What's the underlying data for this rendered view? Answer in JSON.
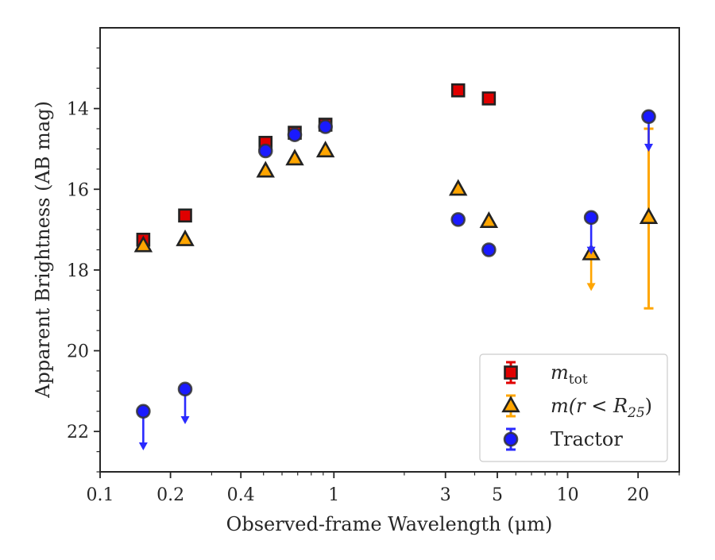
{
  "chart_data": {
    "type": "scatter",
    "xlabel": "Observed-frame Wavelength (μm)",
    "ylabel": "Apparent Brightness (AB mag)",
    "xscale": "log",
    "xlim": [
      0.1,
      30
    ],
    "ylim": [
      23.0,
      12.0
    ],
    "y_inverted": true,
    "xticks": [
      {
        "value": 0.1,
        "label": "0.1"
      },
      {
        "value": 0.2,
        "label": "0.2"
      },
      {
        "value": 0.4,
        "label": "0.4"
      },
      {
        "value": 1,
        "label": "1"
      },
      {
        "value": 3,
        "label": "3"
      },
      {
        "value": 5,
        "label": "5"
      },
      {
        "value": 10,
        "label": "10"
      },
      {
        "value": 20,
        "label": "20"
      }
    ],
    "yticks": [
      {
        "value": 14,
        "label": "14"
      },
      {
        "value": 16,
        "label": "16"
      },
      {
        "value": 18,
        "label": "18"
      },
      {
        "value": 20,
        "label": "20"
      },
      {
        "value": 22,
        "label": "22"
      }
    ],
    "grid": false,
    "legend_position": "lower-right",
    "series": [
      {
        "name": "m_tot",
        "legend_base": "m",
        "legend_sub": "tot",
        "legend_sup": "",
        "marker": "square",
        "color": "#e00000",
        "edge_color": "#222222",
        "error_color": "#e00000",
        "points": [
          {
            "x": 0.153,
            "y": 17.25
          },
          {
            "x": 0.231,
            "y": 16.65
          },
          {
            "x": 0.51,
            "y": 14.85
          },
          {
            "x": 0.68,
            "y": 14.6
          },
          {
            "x": 0.92,
            "y": 14.4
          },
          {
            "x": 3.4,
            "y": 13.55
          },
          {
            "x": 4.6,
            "y": 13.75
          }
        ]
      },
      {
        "name": "m(r < R25)",
        "legend_base": "m(r < R",
        "legend_sub": "25",
        "legend_sup": ")",
        "marker": "triangle",
        "color": "#ffa500",
        "edge_color": "#222222",
        "error_color": "#ffa500",
        "points": [
          {
            "x": 0.153,
            "y": 17.4
          },
          {
            "x": 0.231,
            "y": 17.25
          },
          {
            "x": 0.51,
            "y": 15.55
          },
          {
            "x": 0.68,
            "y": 15.25
          },
          {
            "x": 0.92,
            "y": 15.05
          },
          {
            "x": 3.4,
            "y": 16.0
          },
          {
            "x": 4.6,
            "y": 16.8
          },
          {
            "x": 12.6,
            "y": 17.6,
            "upper_limit": true,
            "limit_to": 18.5
          },
          {
            "x": 22.2,
            "y": 16.7,
            "err_low": 14.5,
            "err_high": 18.95
          }
        ]
      },
      {
        "name": "Tractor",
        "legend_base": "Tractor",
        "legend_sub": "",
        "legend_sup": "",
        "marker": "circle",
        "color": "#1a1aff",
        "edge_color": "#333333",
        "error_color": "#2a2aff",
        "points": [
          {
            "x": 0.153,
            "y": 21.5,
            "upper_limit": true,
            "limit_to": 22.45
          },
          {
            "x": 0.231,
            "y": 20.95,
            "upper_limit": true,
            "limit_to": 21.8
          },
          {
            "x": 0.51,
            "y": 15.05
          },
          {
            "x": 0.68,
            "y": 14.65
          },
          {
            "x": 0.92,
            "y": 14.45
          },
          {
            "x": 3.4,
            "y": 16.75
          },
          {
            "x": 4.6,
            "y": 17.5
          },
          {
            "x": 12.6,
            "y": 16.7,
            "upper_limit": true,
            "limit_to": 17.6
          },
          {
            "x": 22.2,
            "y": 14.2,
            "upper_limit": true,
            "limit_to": 15.05
          }
        ]
      }
    ]
  }
}
